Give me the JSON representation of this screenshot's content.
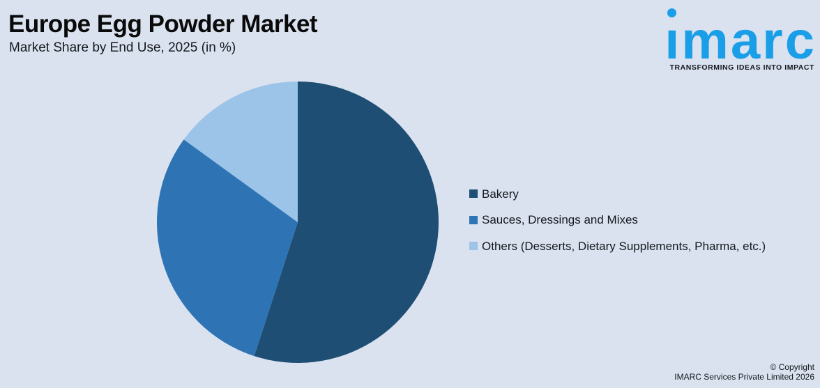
{
  "header": {
    "title": "Europe Egg Powder Market",
    "subtitle": "Market Share by End Use, 2025 (in %)"
  },
  "logo": {
    "brand": "imarc",
    "tagline": "TRANSFORMING IDEAS INTO IMPACT",
    "color": "#1B9EE8"
  },
  "chart_data": {
    "type": "pie",
    "title": "Market Share by End Use, 2025 (in %)",
    "unit": "%",
    "categories": [
      "Bakery",
      "Sauces, Dressings and Mixes",
      "Others (Desserts, Dietary Supplements, Pharma, etc.)"
    ],
    "values": [
      55,
      30,
      15
    ],
    "colors": [
      "#1F4E74",
      "#2E74B5",
      "#9CC4E8"
    ],
    "start_angle_deg": 0,
    "direction": "clockwise",
    "legend_position": "right",
    "data_labels": false
  },
  "footer": {
    "line1": "© Copyright",
    "line2": "IMARC Services Private Limited 2026"
  },
  "theme": {
    "background": "#DAE2F0",
    "text": "#15181d"
  }
}
